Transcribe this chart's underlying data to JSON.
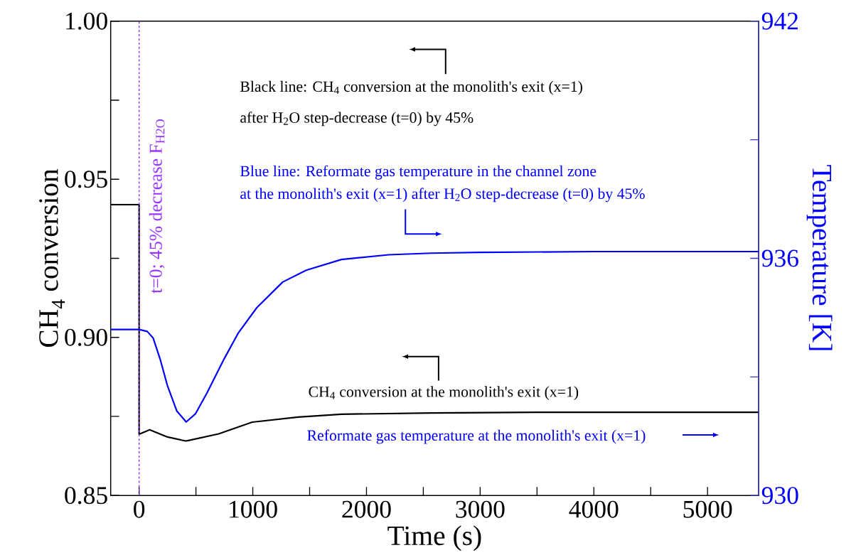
{
  "chart_data": {
    "type": "line",
    "xlabel": "Time (s)",
    "ylabel": "CH$_{4}$ conversion",
    "y2label": "Temperature [K]",
    "xlim": [
      -250,
      5450
    ],
    "xticks": [
      0,
      {
        "value": 500,
        "label": null
      },
      1000,
      {
        "value": 1500,
        "label": null
      },
      2000,
      {
        "value": 2500,
        "label": null
      },
      3000,
      {
        "value": 3500,
        "label": null
      },
      4000,
      {
        "value": 4500,
        "label": null
      },
      5000
    ],
    "ylim": [
      0.85,
      1.0
    ],
    "yticks": [
      {
        "value": 0.85,
        "label": "0.85"
      },
      {
        "value": 0.875,
        "label": null
      },
      {
        "value": 0.9,
        "label": "0.90"
      },
      {
        "value": 0.925,
        "label": null
      },
      {
        "value": 0.95,
        "label": "0.95"
      },
      {
        "value": 0.975,
        "label": null
      },
      {
        "value": 1.0,
        "label": "1.00"
      }
    ],
    "y2lim": [
      930,
      942
    ],
    "y2ticks": [
      930,
      {
        "value": 933,
        "label": null
      },
      936,
      {
        "value": 939,
        "label": null
      },
      942
    ],
    "series": [
      {
        "color": "#000000",
        "x": [
          -250,
          0,
          0,
          93,
          250,
          412,
          700,
          995,
          1400,
          1780,
          2570,
          3500,
          5450
        ],
        "values": [
          0.942,
          0.942,
          0.8694,
          0.8708,
          0.8685,
          0.8672,
          0.8695,
          0.8732,
          0.8748,
          0.8757,
          0.8761,
          0.8763,
          0.8763
        ]
      },
      {
        "color": "#0000ff",
        "axis": "y2",
        "x": [
          -250,
          0,
          72,
          124,
          186,
          248,
          331,
          414,
          497,
          600,
          745,
          870,
          1035,
          1263,
          1470,
          1780,
          2195,
          2568,
          3000,
          4000,
          5450
        ],
        "values": [
          934.2,
          934.2,
          934.15,
          933.98,
          933.44,
          932.79,
          932.14,
          931.86,
          932.07,
          932.61,
          933.44,
          934.1,
          934.75,
          935.4,
          935.7,
          935.97,
          936.09,
          936.13,
          936.15,
          936.17,
          936.17
        ]
      }
    ],
    "ref_lines": [
      {
        "axis": "x",
        "value": 0,
        "label": "t=0; 45% decrease F$_{H2O}$",
        "color": "#9933ff",
        "line_style": "dashed"
      }
    ],
    "annotations": [
      "Black line: CH$_{4}$ conversion at the monolith's exit (x=1)",
      "after H$_{2}$O step-decrease (t=0) by 45%",
      "Blue line: Reformate gas temperature in the channel zone",
      "at the monolith's exit (x=1) after H$_{2}$O step-decrease (t=0) by 45%",
      "CH$_{4}$ conversion at the monolith's exit (x=1)",
      "Reformate gas temperature at the monolith's exit (x=1)"
    ],
    "grid": false,
    "marker": "none",
    "line_style": "solid"
  }
}
